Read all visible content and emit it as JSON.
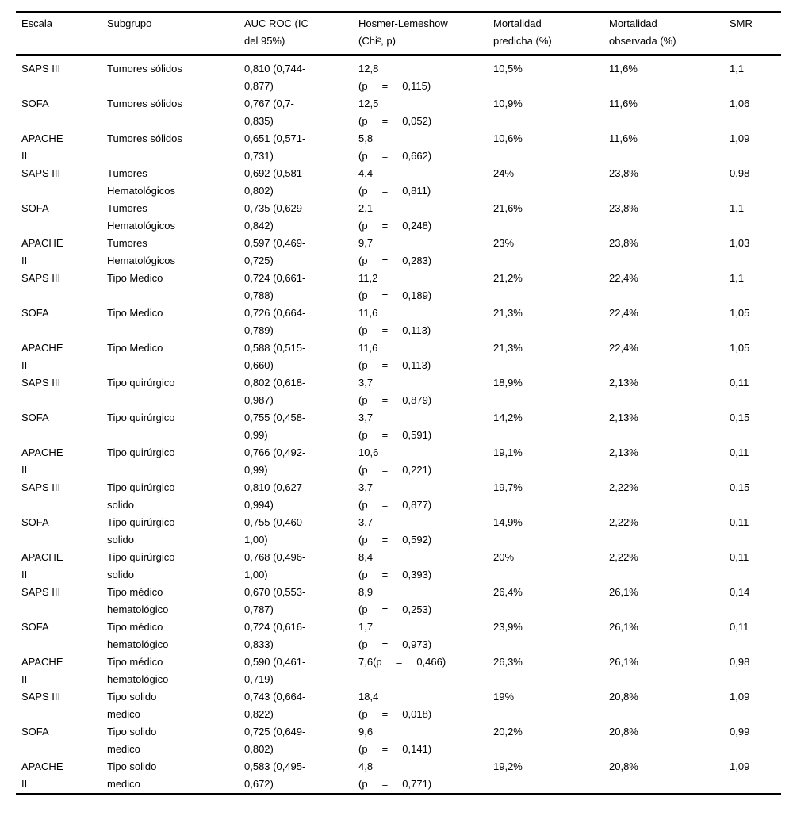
{
  "colors": {
    "background": "#ffffff",
    "text": "#000000",
    "rule": "#000000"
  },
  "table": {
    "columns": [
      {
        "key": "escala",
        "label": "Escala"
      },
      {
        "key": "subgrupo",
        "label": "Subgrupo"
      },
      {
        "key": "auc-roc",
        "label": "AUC ROC (IC\ndel 95%)"
      },
      {
        "key": "hosmer-lemeshow",
        "label": "Hosmer-Lemeshow\n(Chi², p)"
      },
      {
        "key": "mortalidad-predicha",
        "label": "Mortalidad\npredicha (%)"
      },
      {
        "key": "mortalidad-observada",
        "label": "Mortalidad\nobservada (%)"
      },
      {
        "key": "smr",
        "label": "SMR"
      }
    ],
    "rows": [
      [
        "SAPS III",
        "Tumores sólidos",
        "0,810 (0,744-\n0,877)",
        "12,8\n(p     =     0,115)",
        "10,5%",
        "11,6%",
        "1,1"
      ],
      [
        "SOFA",
        "Tumores sólidos",
        "0,767 (0,7-\n0,835)",
        "12,5\n(p     =     0,052)",
        "10,9%",
        "11,6%",
        "1,06"
      ],
      [
        "APACHE\nII",
        "Tumores sólidos",
        "0,651 (0,571-\n0,731)",
        "5,8\n(p     =     0,662)",
        "10,6%",
        "11,6%",
        "1,09"
      ],
      [
        "SAPS III",
        "Tumores\nHematológicos",
        "0,692 (0,581-\n0,802)",
        "4,4\n(p     =     0,811)",
        "24%",
        "23,8%",
        "0,98"
      ],
      [
        "SOFA",
        "Tumores\nHematológicos",
        "0,735 (0,629-\n0,842)",
        "2,1\n(p     =     0,248)",
        "21,6%",
        "23,8%",
        "1,1"
      ],
      [
        "APACHE\nII",
        "Tumores\nHematológicos",
        "0,597 (0,469-\n0,725)",
        "9,7\n(p     =     0,283)",
        "23%",
        "23,8%",
        "1,03"
      ],
      [
        "SAPS III",
        "Tipo Medico",
        "0,724 (0,661-\n0,788)",
        "11,2\n(p     =     0,189)",
        "21,2%",
        "22,4%",
        "1,1"
      ],
      [
        "SOFA",
        "Tipo Medico",
        "0,726 (0,664-\n0,789)",
        "11,6\n(p     =     0,113)",
        "21,3%",
        "22,4%",
        "1,05"
      ],
      [
        "APACHE\nII",
        "Tipo Medico",
        "0,588 (0,515-\n0,660)",
        "11,6\n(p     =     0,113)",
        "21,3%",
        "22,4%",
        "1,05"
      ],
      [
        "SAPS III",
        "Tipo quirúrgico",
        "0,802 (0,618-\n0,987)",
        "3,7\n(p     =     0,879)",
        "18,9%",
        "2,13%",
        "0,11"
      ],
      [
        "SOFA",
        "Tipo quirúrgico",
        "0,755 (0,458-\n0,99)",
        "3,7\n(p     =     0,591)",
        "14,2%",
        "2,13%",
        "0,15"
      ],
      [
        "APACHE\nII",
        "Tipo quirúrgico",
        "0,766 (0,492-\n0,99)",
        "10,6\n(p     =     0,221)",
        "19,1%",
        "2,13%",
        "0,11"
      ],
      [
        "SAPS III",
        "Tipo quirúrgico\nsolido",
        "0,810 (0,627-\n0,994)",
        "3,7\n(p     =     0,877)",
        "19,7%",
        "2,22%",
        "0,15"
      ],
      [
        "SOFA",
        "Tipo quirúrgico\nsolido",
        "0,755 (0,460-\n1,00)",
        "3,7\n(p     =     0,592)",
        "14,9%",
        "2,22%",
        "0,11"
      ],
      [
        "APACHE\nII",
        "Tipo quirúrgico\nsolido",
        "0,768 (0,496-\n1,00)",
        "8,4\n(p     =     0,393)",
        "20%",
        "2,22%",
        "0,11"
      ],
      [
        "SAPS III",
        "Tipo médico\nhematológico",
        "0,670 (0,553-\n0,787)",
        "8,9\n(p     =     0,253)",
        "26,4%",
        "26,1%",
        "0,14"
      ],
      [
        "SOFA",
        "Tipo médico\nhematológico",
        "0,724 (0,616-\n0,833)",
        "1,7\n(p     =     0,973)",
        "23,9%",
        "26,1%",
        "0,11"
      ],
      [
        "APACHE\nII",
        "Tipo médico\nhematológico",
        "0,590 (0,461-\n0,719)",
        "7,6(p     =     0,466)",
        "26,3%",
        "26,1%",
        "0,98"
      ],
      [
        "SAPS III",
        "Tipo solido\nmedico",
        "0,743 (0,664-\n0,822)",
        "18,4\n(p     =     0,018)",
        "19%",
        "20,8%",
        "1,09"
      ],
      [
        "SOFA",
        "Tipo solido\nmedico",
        "0,725 (0,649-\n0,802)",
        "9,6\n(p     =     0,141)",
        "20,2%",
        "20,8%",
        "0,99"
      ],
      [
        "APACHE\nII",
        "Tipo solido\nmedico",
        "0,583 (0,495-\n0,672)",
        "4,8\n(p     =     0,771)",
        "19,2%",
        "20,8%",
        "1,09"
      ]
    ]
  }
}
